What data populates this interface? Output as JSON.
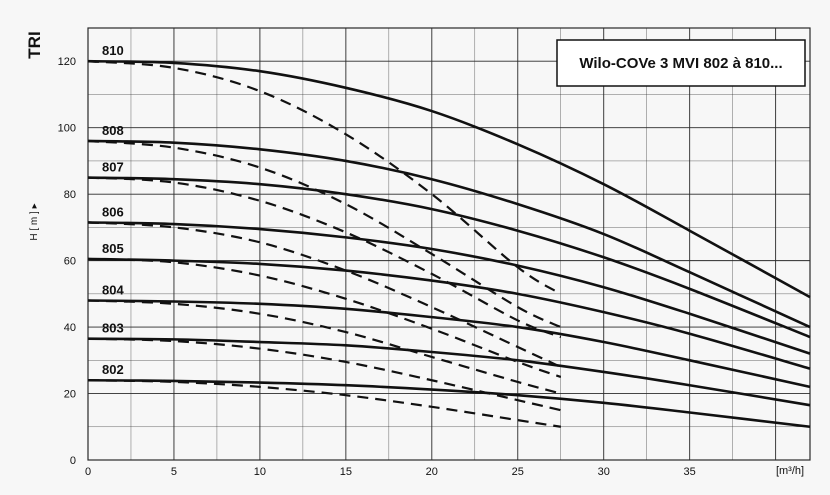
{
  "chart_data": {
    "type": "line",
    "title": "Wilo-COVe 3 MVI 802 à 810...",
    "side_label": "TRI",
    "ylabel": "H [ m ] ▸",
    "xlabel": "[m³/h]",
    "xlim": [
      0,
      42
    ],
    "ylim": [
      0,
      130
    ],
    "x_ticks": [
      "0",
      "5",
      "10",
      "15",
      "20",
      "25",
      "30",
      "35"
    ],
    "x_tick_values": [
      0,
      5,
      10,
      15,
      20,
      25,
      30,
      35
    ],
    "y_ticks": [
      "0",
      "20",
      "40",
      "60",
      "80",
      "100",
      "120"
    ],
    "y_tick_values": [
      0,
      20,
      40,
      60,
      80,
      100,
      120
    ],
    "grid": true,
    "series": [
      {
        "name": "810",
        "x": [
          0,
          5,
          10,
          15,
          20,
          25,
          30,
          35,
          42
        ],
        "y": [
          120,
          119.5,
          117,
          112,
          105,
          95,
          83,
          69,
          49
        ]
      },
      {
        "name": "808",
        "x": [
          0,
          5,
          10,
          15,
          20,
          25,
          30,
          35,
          42
        ],
        "y": [
          96,
          95.5,
          93.5,
          90,
          84.5,
          77,
          68,
          56.5,
          40
        ]
      },
      {
        "name": "807",
        "x": [
          0,
          5,
          10,
          15,
          20,
          25,
          30,
          35,
          42
        ],
        "y": [
          85,
          84.5,
          83,
          80,
          75.5,
          69,
          61,
          51.5,
          37
        ]
      },
      {
        "name": "806",
        "x": [
          0,
          5,
          10,
          15,
          20,
          25,
          30,
          35,
          42
        ],
        "y": [
          71.5,
          71,
          69.5,
          67,
          63.5,
          58.5,
          52,
          44,
          32
        ]
      },
      {
        "name": "805",
        "x": [
          0,
          5,
          10,
          15,
          20,
          25,
          30,
          35,
          42
        ],
        "y": [
          60.5,
          60,
          59,
          57,
          54,
          50,
          44.5,
          38,
          27.5
        ]
      },
      {
        "name": "804",
        "x": [
          0,
          5,
          10,
          15,
          20,
          25,
          30,
          35,
          42
        ],
        "y": [
          48,
          47.7,
          47,
          45.5,
          43,
          40,
          35.5,
          30,
          22
        ]
      },
      {
        "name": "803",
        "x": [
          0,
          5,
          10,
          15,
          20,
          25,
          30,
          35,
          42
        ],
        "y": [
          36.5,
          36.3,
          35.5,
          34.5,
          32.5,
          30,
          26.5,
          22.5,
          16.5
        ]
      },
      {
        "name": "802",
        "x": [
          0,
          5,
          10,
          15,
          20,
          25,
          30,
          35,
          42
        ],
        "y": [
          24,
          23.8,
          23.3,
          22.5,
          21.2,
          19.5,
          17.2,
          14.3,
          10
        ]
      }
    ],
    "dashed_series": [
      {
        "x": [
          0,
          5,
          10,
          15,
          20,
          25,
          27.5
        ],
        "y": [
          120,
          118,
          111,
          98,
          80,
          58,
          50
        ]
      },
      {
        "x": [
          0,
          5,
          10,
          15,
          20,
          25,
          27.5
        ],
        "y": [
          96,
          94,
          88,
          77,
          62,
          46,
          40
        ]
      },
      {
        "x": [
          0,
          5,
          10,
          15,
          20,
          25,
          27.5
        ],
        "y": [
          85,
          83.5,
          78,
          68.5,
          56,
          42,
          37
        ]
      },
      {
        "x": [
          0,
          5,
          10,
          15,
          20,
          25,
          27.5
        ],
        "y": [
          71.5,
          70,
          65.5,
          57,
          46,
          34,
          28
        ]
      },
      {
        "x": [
          0,
          5,
          10,
          15,
          20,
          25,
          27.5
        ],
        "y": [
          60.5,
          59.5,
          55.5,
          48.5,
          39.5,
          29.5,
          25
        ]
      },
      {
        "x": [
          0,
          5,
          10,
          15,
          20,
          25,
          27.5
        ],
        "y": [
          48,
          47,
          44,
          38.5,
          31,
          23.5,
          20
        ]
      },
      {
        "x": [
          0,
          5,
          10,
          15,
          20,
          25,
          27.5
        ],
        "y": [
          36.5,
          35.8,
          33.5,
          29.5,
          24,
          18,
          15
        ]
      },
      {
        "x": [
          0,
          5,
          10,
          15,
          20,
          25,
          27.5
        ],
        "y": [
          24,
          23.5,
          22,
          19.5,
          16,
          12,
          10
        ]
      }
    ],
    "colors": {
      "line": "#111111",
      "grid": "#2a2a2a",
      "background": "#f7f7f7"
    }
  }
}
